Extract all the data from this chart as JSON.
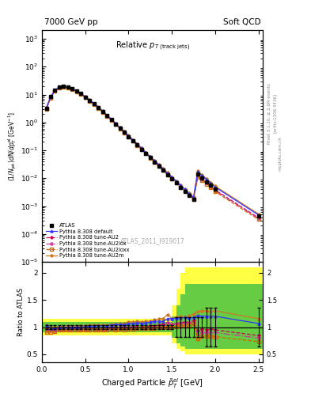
{
  "title_left": "7000 GeV pp",
  "title_right": "Soft QCD",
  "plot_title": "Relative p_{T (track jets)}",
  "xlabel": "Charged Particle $\\tilde{p}^{el}_T$ [GeV]",
  "ylabel_main": "(1/Njet)dN/dp$^{el}_T$ [GeV$^{-1}$]",
  "ylabel_ratio": "Ratio to ATLAS",
  "right_label1": "Rivet 3.1.10, ≥ 2.6M events",
  "right_label2": "[arXiv:1306.3436]",
  "right_label3": "mcplots.cern.ch",
  "watermark": "ATLAS_2011_I919017",
  "atlas_x": [
    0.05,
    0.1,
    0.15,
    0.2,
    0.25,
    0.3,
    0.35,
    0.4,
    0.45,
    0.5,
    0.55,
    0.6,
    0.65,
    0.7,
    0.75,
    0.8,
    0.85,
    0.9,
    0.95,
    1.0,
    1.05,
    1.1,
    1.15,
    1.2,
    1.25,
    1.3,
    1.35,
    1.4,
    1.45,
    1.5,
    1.55,
    1.6,
    1.65,
    1.7,
    1.75,
    1.8,
    1.85,
    1.9,
    1.95,
    2.0,
    2.5
  ],
  "atlas_y": [
    3.2,
    8.5,
    14.5,
    18.5,
    19.5,
    18.5,
    16.0,
    13.5,
    10.8,
    8.2,
    6.2,
    4.6,
    3.4,
    2.5,
    1.75,
    1.25,
    0.88,
    0.62,
    0.44,
    0.31,
    0.22,
    0.155,
    0.11,
    0.077,
    0.054,
    0.038,
    0.027,
    0.019,
    0.013,
    0.0095,
    0.0067,
    0.0047,
    0.0034,
    0.0024,
    0.0017,
    0.014,
    0.01,
    0.0075,
    0.0055,
    0.004,
    0.00045
  ],
  "default_y": [
    3.3,
    8.3,
    14.2,
    18.4,
    19.4,
    18.4,
    16.0,
    13.5,
    10.8,
    8.3,
    6.3,
    4.7,
    3.5,
    2.55,
    1.8,
    1.3,
    0.92,
    0.65,
    0.46,
    0.33,
    0.235,
    0.167,
    0.118,
    0.083,
    0.059,
    0.042,
    0.03,
    0.021,
    0.015,
    0.011,
    0.0078,
    0.0055,
    0.004,
    0.0028,
    0.002,
    0.017,
    0.012,
    0.009,
    0.0066,
    0.0048,
    0.00048
  ],
  "au2_y": [
    3.1,
    8.1,
    13.9,
    18.1,
    19.1,
    18.1,
    15.7,
    13.2,
    10.6,
    8.1,
    6.1,
    4.55,
    3.35,
    2.45,
    1.73,
    1.25,
    0.88,
    0.62,
    0.44,
    0.31,
    0.222,
    0.157,
    0.111,
    0.078,
    0.055,
    0.039,
    0.028,
    0.02,
    0.014,
    0.01,
    0.0071,
    0.0051,
    0.0037,
    0.0026,
    0.0019,
    0.013,
    0.0096,
    0.0071,
    0.0053,
    0.0038,
    0.00038
  ],
  "au2lox_y": [
    3.0,
    7.9,
    13.6,
    17.8,
    18.8,
    17.9,
    15.5,
    13.0,
    10.4,
    7.9,
    6.0,
    4.45,
    3.28,
    2.4,
    1.69,
    1.22,
    0.86,
    0.61,
    0.43,
    0.31,
    0.218,
    0.154,
    0.109,
    0.077,
    0.054,
    0.038,
    0.027,
    0.019,
    0.014,
    0.01,
    0.007,
    0.005,
    0.0036,
    0.0026,
    0.0018,
    0.012,
    0.009,
    0.0067,
    0.005,
    0.0036,
    0.00036
  ],
  "au2loxx_y": [
    2.9,
    7.7,
    13.3,
    17.5,
    18.5,
    17.6,
    15.2,
    12.8,
    10.2,
    7.8,
    5.9,
    4.38,
    3.22,
    2.36,
    1.66,
    1.2,
    0.84,
    0.6,
    0.42,
    0.3,
    0.213,
    0.151,
    0.107,
    0.075,
    0.053,
    0.037,
    0.027,
    0.019,
    0.013,
    0.0095,
    0.0068,
    0.0048,
    0.0035,
    0.0025,
    0.0018,
    0.011,
    0.0083,
    0.0062,
    0.0046,
    0.0033,
    0.00033
  ],
  "au2m_y": [
    3.3,
    8.5,
    14.5,
    18.7,
    19.7,
    18.8,
    16.3,
    13.8,
    11.0,
    8.4,
    6.4,
    4.8,
    3.52,
    2.58,
    1.82,
    1.31,
    0.93,
    0.66,
    0.47,
    0.34,
    0.241,
    0.171,
    0.121,
    0.085,
    0.06,
    0.043,
    0.031,
    0.022,
    0.016,
    0.011,
    0.0079,
    0.0056,
    0.004,
    0.0029,
    0.0021,
    0.018,
    0.013,
    0.0097,
    0.0071,
    0.0052,
    0.00052
  ],
  "ylim_main": [
    1e-05,
    2000.0
  ],
  "xlim": [
    0.0,
    2.55
  ],
  "ratio_ylim": [
    0.35,
    2.2
  ],
  "ratio_yticks": [
    0.5,
    1.0,
    1.5,
    2.0
  ],
  "ratio_yticklabels": [
    "0.5",
    "1",
    "1.5",
    "2"
  ],
  "colors": {
    "atlas": "#000000",
    "default": "#3333ff",
    "au2": "#cc0055",
    "au2lox": "#cc3399",
    "au2loxx": "#cc6600",
    "au2m": "#cc7722"
  },
  "band_steps": {
    "x_edges": [
      0.0,
      0.05,
      0.1,
      0.15,
      0.2,
      0.25,
      0.3,
      0.35,
      0.4,
      0.45,
      0.5,
      0.55,
      0.6,
      0.65,
      0.7,
      0.75,
      0.8,
      0.85,
      0.9,
      0.95,
      1.0,
      1.05,
      1.1,
      1.15,
      1.2,
      1.25,
      1.3,
      1.35,
      1.4,
      1.45,
      1.5,
      1.55,
      1.6,
      1.65,
      1.7,
      1.75,
      1.8,
      1.85,
      1.9,
      1.95,
      2.0,
      2.55
    ],
    "yellow_lo": [
      0.85,
      0.85,
      0.85,
      0.85,
      0.85,
      0.85,
      0.85,
      0.85,
      0.85,
      0.85,
      0.85,
      0.85,
      0.85,
      0.85,
      0.85,
      0.85,
      0.85,
      0.85,
      0.85,
      0.85,
      0.85,
      0.85,
      0.85,
      0.85,
      0.85,
      0.85,
      0.85,
      0.85,
      0.85,
      0.85,
      0.7,
      0.6,
      0.55,
      0.5,
      0.5,
      0.5,
      0.5,
      0.5,
      0.5,
      0.5,
      0.5
    ],
    "yellow_hi": [
      1.15,
      1.15,
      1.15,
      1.15,
      1.15,
      1.15,
      1.15,
      1.15,
      1.15,
      1.15,
      1.15,
      1.15,
      1.15,
      1.15,
      1.15,
      1.15,
      1.15,
      1.15,
      1.15,
      1.15,
      1.15,
      1.15,
      1.15,
      1.15,
      1.15,
      1.15,
      1.15,
      1.15,
      1.15,
      1.15,
      1.4,
      1.7,
      2.0,
      2.1,
      2.1,
      2.1,
      2.1,
      2.1,
      2.1,
      2.1,
      2.1
    ],
    "green_lo": [
      0.9,
      0.9,
      0.9,
      0.9,
      0.9,
      0.9,
      0.9,
      0.9,
      0.9,
      0.9,
      0.9,
      0.9,
      0.9,
      0.9,
      0.9,
      0.9,
      0.9,
      0.9,
      0.9,
      0.9,
      0.9,
      0.9,
      0.9,
      0.9,
      0.9,
      0.9,
      0.9,
      0.9,
      0.9,
      0.9,
      0.8,
      0.7,
      0.65,
      0.6,
      0.6,
      0.6,
      0.6,
      0.6,
      0.6,
      0.6,
      0.6
    ],
    "green_hi": [
      1.1,
      1.1,
      1.1,
      1.1,
      1.1,
      1.1,
      1.1,
      1.1,
      1.1,
      1.1,
      1.1,
      1.1,
      1.1,
      1.1,
      1.1,
      1.1,
      1.1,
      1.1,
      1.1,
      1.1,
      1.1,
      1.1,
      1.1,
      1.1,
      1.1,
      1.1,
      1.1,
      1.1,
      1.1,
      1.1,
      1.2,
      1.4,
      1.6,
      1.8,
      1.8,
      1.8,
      1.8,
      1.8,
      1.8,
      1.8,
      1.8
    ]
  }
}
